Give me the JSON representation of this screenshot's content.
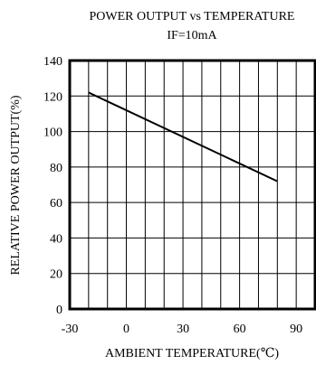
{
  "chart_data": {
    "type": "line",
    "title": "POWER OUTPUT vs TEMPERATURE",
    "subtitle": "IF=10mA",
    "xlabel": "AMBIENT TEMPERATURE(℃)",
    "ylabel": "RELATIVE POWER OUTPUT(%)",
    "xlim": [
      -30,
      100
    ],
    "ylim": [
      0,
      140
    ],
    "x_ticks": [
      -30,
      0,
      30,
      60,
      90
    ],
    "x_tick_labels": [
      "-30",
      "0",
      "30",
      "60",
      "90"
    ],
    "y_ticks": [
      0,
      20,
      40,
      60,
      80,
      100,
      120,
      140
    ],
    "y_tick_labels": [
      "0",
      "20",
      "40",
      "60",
      "80",
      "100",
      "120",
      "140"
    ],
    "grid": true,
    "x": [
      -20,
      80
    ],
    "values": [
      122,
      72
    ],
    "colors": {
      "line": "#000000",
      "grid": "#000000",
      "background": "#ffffff"
    }
  }
}
